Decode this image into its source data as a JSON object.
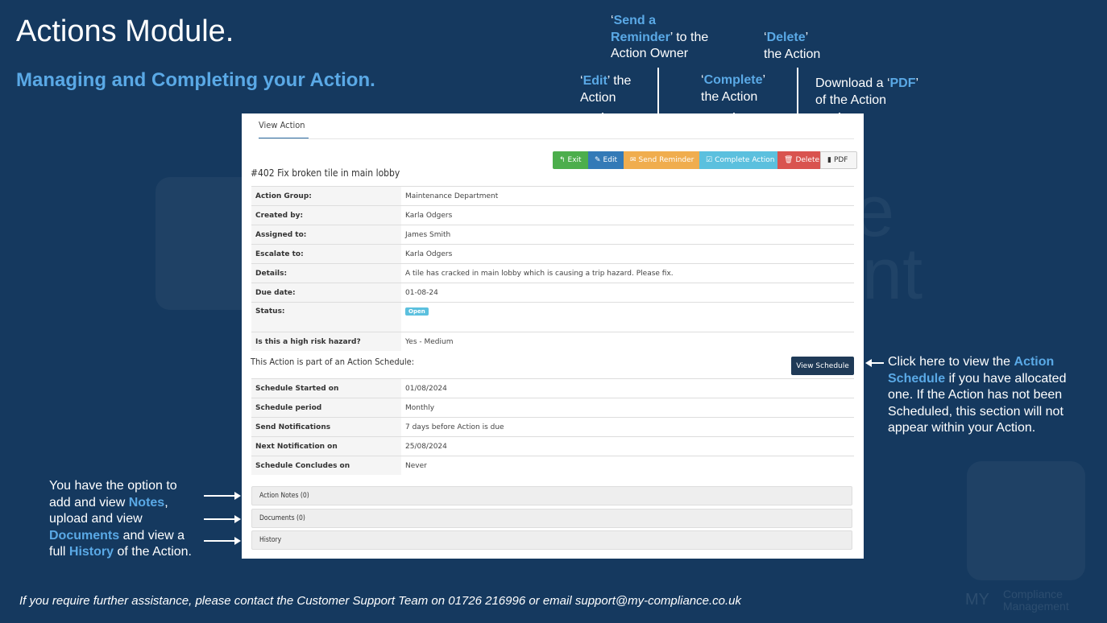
{
  "slide": {
    "title": "Actions Module.",
    "subtitle": "Managing and Completing your Action.",
    "footer": "If you require further assistance, please contact the Customer Support Team on 01726 216996 or email support@my-compliance.co.uk"
  },
  "watermark": {
    "word_1": "e",
    "word_2": "ent",
    "logo_line_1": "Compliance",
    "logo_line_2": "Management",
    "logo_prefix": "MY"
  },
  "callouts": {
    "edit": {
      "q1": "‘",
      "b": "Edit",
      "q2": "’ the",
      "line2": "Action"
    },
    "remind": {
      "q1": "‘",
      "b1": "Send a",
      "b2": "Reminder",
      "q2": "’ to the",
      "line3": "Action Owner"
    },
    "complete": {
      "q1": "‘",
      "b": "Complete",
      "q2": "’",
      "line2": "the Action"
    },
    "delete": {
      "q1": "‘",
      "b": "Delete",
      "q2": "’",
      "line2": "the Action"
    },
    "pdf": {
      "pre": "Download a ‘",
      "b": "PDF",
      "post": "’",
      "line2": "of the Action"
    },
    "schedule": {
      "l1_pre": "Click here to view the ",
      "l1_b": "Action",
      "l2_b": "Schedule",
      "l2_post": " if you have allocated",
      "l3": "one. If the Action has not been",
      "l4": "Scheduled, this section will not",
      "l5": "appear within your Action."
    },
    "notes": {
      "l1": "You have the option to",
      "l2_pre": "add and view ",
      "l2_b": "Notes",
      "l2_post": ",",
      "l3": "upload and view",
      "l4_b": "Documents",
      "l4_post": " and view a",
      "l5_pre": "full ",
      "l5_b": "History",
      "l5_post": " of the Action."
    }
  },
  "panel": {
    "tab": "View Action",
    "toolbar": {
      "exit": "Exit",
      "edit": "Edit",
      "send_reminder": "Send Reminder",
      "complete": "Complete Action",
      "delete": "Delete",
      "pdf": "PDF"
    },
    "action_title": "#402 Fix broken tile in main lobby",
    "details": [
      {
        "label": "Action Group:",
        "value": "Maintenance Department"
      },
      {
        "label": "Created by:",
        "value": "Karla Odgers"
      },
      {
        "label": "Assigned to:",
        "value": "James Smith"
      },
      {
        "label": "Escalate to:",
        "value": "Karla Odgers"
      },
      {
        "label": "Details:",
        "value": "A tile has cracked in main lobby which is causing a trip hazard. Please fix."
      },
      {
        "label": "Due date:",
        "value": "01-08-24"
      },
      {
        "label": "Status:",
        "value": "Open"
      },
      {
        "label": "Is this a high risk hazard?",
        "value": "Yes - Medium"
      }
    ],
    "schedule_heading": "This Action is part of an Action Schedule:",
    "view_schedule": "View Schedule",
    "schedule": [
      {
        "label": "Schedule Started on",
        "value": "01/08/2024"
      },
      {
        "label": "Schedule period",
        "value": "Monthly"
      },
      {
        "label": "Send Notifications",
        "value": "7 days before Action is due"
      },
      {
        "label": "Next Notification on",
        "value": "25/08/2024"
      },
      {
        "label": "Schedule Concludes on",
        "value": "Never"
      }
    ],
    "sections": {
      "notes": "Action Notes (0)",
      "documents": "Documents (0)",
      "history": "History"
    }
  },
  "colors": {
    "background": "#15395f",
    "highlight": "#5aa9e6",
    "exit": "#4cae4c",
    "edit": "#337ab7",
    "reminder": "#f0ad4e",
    "complete": "#5bc0de",
    "delete": "#d9534f",
    "schedule_button": "#1f3a57"
  }
}
